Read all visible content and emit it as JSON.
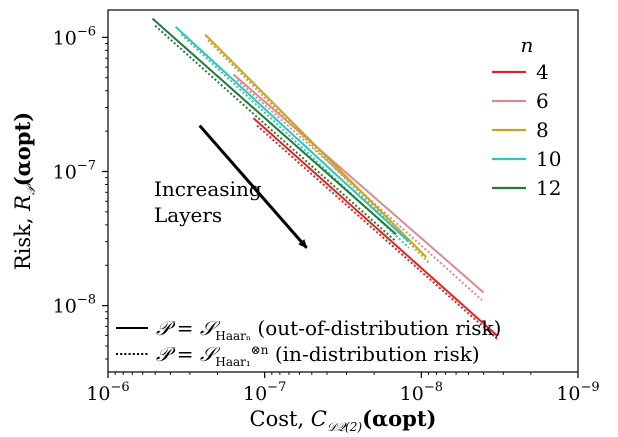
{
  "chart_data": {
    "type": "line",
    "xscale": "log",
    "yscale": "log",
    "xaxis_reversed": true,
    "xlim": [
      1e-06,
      1e-09
    ],
    "ylim": [
      3.2e-09,
      1.6e-06
    ],
    "x_ticks": [
      {
        "value": 1e-06,
        "label": "10−6"
      },
      {
        "value": 1e-07,
        "label": "10−7"
      },
      {
        "value": 1e-08,
        "label": "10−8"
      },
      {
        "value": 1e-09,
        "label": "10−9"
      }
    ],
    "y_ticks": [
      {
        "value": 1e-06,
        "label": "10−6"
      },
      {
        "value": 1e-07,
        "label": "10−7"
      },
      {
        "value": 1e-08,
        "label": "10−8"
      }
    ],
    "xlabel": {
      "prefix": "Cost, ",
      "symbol": "C",
      "subscript": "𝒟𝒬(2)",
      "arg": "(αopt)"
    },
    "ylabel": {
      "prefix": "Risk, ",
      "symbol": "R",
      "subscript": "𝒫",
      "arg": "(αopt)"
    },
    "annotation": {
      "lines": [
        "Increasing",
        "Layers"
      ],
      "arrow_from": [
        2.6e-07,
        2.2e-07
      ],
      "arrow_to": [
        5.4e-08,
        2.7e-08
      ]
    },
    "color_legend": {
      "title": "n",
      "placement": "top-right",
      "entries": [
        {
          "label": "4",
          "color": "#d62728"
        },
        {
          "label": "6",
          "color": "#d98b8b"
        },
        {
          "label": "8",
          "color": "#c9a227"
        },
        {
          "label": "10",
          "color": "#2ec4b6"
        },
        {
          "label": "12",
          "color": "#1e7b3a"
        }
      ]
    },
    "style_legend": {
      "placement": "bottom-left",
      "entries": [
        {
          "style": "solid",
          "math": "𝒫 = 𝒮",
          "sub": "Haarₙ",
          "sup": "",
          "text": " (out-of-distribution risk)"
        },
        {
          "style": "dotted",
          "math": "𝒫 = 𝒮",
          "sub": "Haar₁",
          "sup": "⊗n",
          "text": " (in-distribution risk)"
        }
      ]
    },
    "series": [
      {
        "n": "4",
        "style": "solid",
        "color": "#d62728",
        "points": [
          [
            1.18e-07,
            2.5e-07
          ],
          [
            3.3e-09,
            6e-09
          ]
        ]
      },
      {
        "n": "4",
        "style": "dotted",
        "color": "#d62728",
        "points": [
          [
            1.12e-07,
            2.2e-07
          ],
          [
            3.2e-09,
            5.5e-09
          ]
        ]
      },
      {
        "n": "6",
        "style": "solid",
        "color": "#d98b8b",
        "points": [
          [
            1.58e-07,
            5.3e-07
          ],
          [
            4e-09,
            1.25e-08
          ]
        ]
      },
      {
        "n": "6",
        "style": "dotted",
        "color": "#d98b8b",
        "points": [
          [
            1.5e-07,
            4.8e-07
          ],
          [
            4.1e-09,
            1.1e-08
          ]
        ]
      },
      {
        "n": "8",
        "style": "solid",
        "color": "#c9a227",
        "points": [
          [
            2.4e-07,
            1.05e-06
          ],
          [
            9.3e-09,
            2.3e-08
          ]
        ]
      },
      {
        "n": "8",
        "style": "dotted",
        "color": "#c9a227",
        "points": [
          [
            2.3e-07,
            9.5e-07
          ],
          [
            9e-09,
            2.1e-08
          ]
        ]
      },
      {
        "n": "10",
        "style": "solid",
        "color": "#2ec4b6",
        "points": [
          [
            3.7e-07,
            1.2e-06
          ],
          [
            1.2e-08,
            3e-08
          ]
        ]
      },
      {
        "n": "10",
        "style": "dotted",
        "color": "#2ec4b6",
        "points": [
          [
            3.4e-07,
            1.05e-06
          ],
          [
            1.2e-08,
            2.7e-08
          ]
        ]
      },
      {
        "n": "12",
        "style": "solid",
        "color": "#1e7b3a",
        "points": [
          [
            5.2e-07,
            1.38e-06
          ],
          [
            1.45e-08,
            3.4e-08
          ]
        ]
      },
      {
        "n": "12",
        "style": "dotted",
        "color": "#1e7b3a",
        "points": [
          [
            5e-07,
            1.22e-06
          ],
          [
            1.45e-08,
            3e-08
          ]
        ]
      }
    ]
  }
}
